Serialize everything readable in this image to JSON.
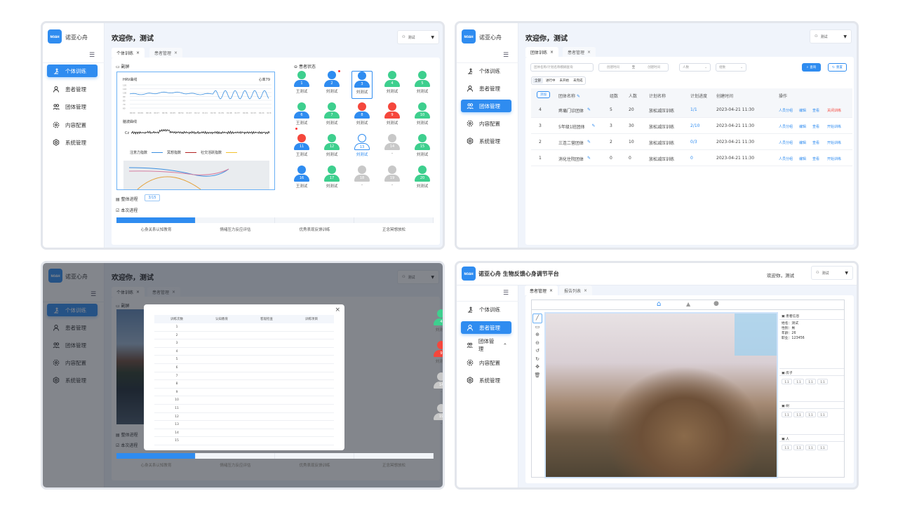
{
  "app": {
    "brand": "诺亚心舟",
    "logo_text": "NOAH",
    "welcome": "欢迎你，测试",
    "user": "测试",
    "platform_title": "诺亚心舟 生物反馈心身调节平台",
    "welcome_short": "欢迎你，测试"
  },
  "colors": {
    "primary": "#2f8cf0",
    "green": "#3ecf8e",
    "red": "#f5473c",
    "gray": "#c8c8c8"
  },
  "sidebar": {
    "items": [
      {
        "label": "个体训练",
        "icon": "training-icon"
      },
      {
        "label": "患者管理",
        "icon": "patient-icon"
      },
      {
        "label": "团体管理",
        "icon": "group-icon"
      },
      {
        "label": "内容配置",
        "icon": "content-config-icon"
      },
      {
        "label": "系统管理",
        "icon": "settings-icon"
      }
    ]
  },
  "individual": {
    "tabs": [
      "个体训练",
      "患者管理"
    ],
    "secondary_screen": "副屏",
    "hrv_title": "HRV曲线",
    "heart_rate": "心率79",
    "hrv_y_ticks": [
      "120",
      "110",
      "100",
      "90",
      "80",
      "70",
      "60"
    ],
    "hrv_x_ticks": [
      "00:00",
      "00:09",
      "00:18",
      "00:27",
      "00:36",
      "00:45",
      "00:54",
      "01:03",
      "01:12",
      "01:21",
      "01:30",
      "01:39",
      "01:48",
      "01:57",
      "02:06",
      "02:15",
      "02:24",
      "02:33"
    ],
    "eeg_title": "脑波曲线",
    "eeg_channel": "Cz",
    "legend": [
      "注意力指数",
      "冥想指数",
      "社交活跃指数"
    ],
    "legend_colors": [
      "#3a8fe0",
      "#b22222",
      "#f2c12e"
    ],
    "patient_status_title": "患者状态",
    "overall_progress_label": "整体进程",
    "overall_progress": "3/15",
    "session_progress_label": "本次进程",
    "session_steps": [
      "心身关系认知教育",
      "情绪压力反应评估",
      "优秀表现反馈训练",
      "正念冥想放松"
    ],
    "session_completed_steps": 1,
    "patients": [
      {
        "no": "1",
        "name": "王测试",
        "head": "green",
        "body": "blue"
      },
      {
        "no": "2",
        "name": "刘测试",
        "head": "blue",
        "body": "blue",
        "alert": true
      },
      {
        "no": "3",
        "name": "刘测试",
        "head": "blue",
        "body": "blue",
        "selected": true
      },
      {
        "no": "4",
        "name": "刘测试",
        "head": "green",
        "body": "green"
      },
      {
        "no": "5",
        "name": "刘测试",
        "head": "green",
        "body": "green"
      },
      {
        "no": "6",
        "name": "王测试",
        "head": "green",
        "body": "blue",
        "alert": true
      },
      {
        "no": "7",
        "name": "刘测试",
        "head": "green",
        "body": "green"
      },
      {
        "no": "8",
        "name": "刘测试",
        "head": "red",
        "body": "blue"
      },
      {
        "no": "9",
        "name": "刘测试",
        "head": "red",
        "body": "red"
      },
      {
        "no": "10",
        "name": "刘测试",
        "head": "green",
        "body": "green"
      },
      {
        "no": "11",
        "name": "王测试",
        "head": "red",
        "body": "blue"
      },
      {
        "no": "12",
        "name": "刘测试",
        "head": "green",
        "body": "green"
      },
      {
        "no": "13",
        "name": "刘测试",
        "head": "outline",
        "body": "outline"
      },
      {
        "no": "14",
        "name": "-",
        "head": "gray",
        "body": "gray"
      },
      {
        "no": "15",
        "name": "刘测试",
        "head": "green",
        "body": "green"
      },
      {
        "no": "16",
        "name": "王测试",
        "head": "blue",
        "body": "blue"
      },
      {
        "no": "17",
        "name": "刘测试",
        "head": "green",
        "body": "green"
      },
      {
        "no": "18",
        "name": "-",
        "head": "gray",
        "body": "gray"
      },
      {
        "no": "19",
        "name": "-",
        "head": "gray",
        "body": "gray"
      },
      {
        "no": "20",
        "name": "刘测试",
        "head": "green",
        "body": "green"
      }
    ]
  },
  "group": {
    "tabs": [
      "团体训练",
      "患者管理"
    ],
    "search_placeholder": "团体名称/计划名称模糊查询",
    "date_start": "创建时间",
    "date_sep": "至",
    "date_end": "创建时间",
    "people_select": "人数",
    "groups_select": "组数",
    "query_button": "查询",
    "reset_button": "重置",
    "filters": [
      "全部",
      "进行中",
      "未开始",
      "未完成"
    ],
    "add_button": "添加",
    "columns": [
      "团体名称",
      "组数",
      "人数",
      "计划名称",
      "计划进度",
      "创建时间",
      "操作"
    ],
    "rows": [
      {
        "id": "4",
        "name": "疼痛门诊团体",
        "groups": "5",
        "people": "20",
        "plan": "放松减压训练",
        "progress": "1/1",
        "created": "2023-04-21 11:30",
        "actions": [
          "人员分组",
          "编辑",
          "查看",
          "关闭训练"
        ]
      },
      {
        "id": "3",
        "name": "5年级1班团体",
        "groups": "3",
        "people": "30",
        "plan": "放松减压训练",
        "progress": "2/10",
        "created": "2023-04-21 11:30",
        "actions": [
          "人员分组",
          "编辑",
          "查看",
          "开始训练"
        ]
      },
      {
        "id": "2",
        "name": "三连二营团体",
        "groups": "2",
        "people": "10",
        "plan": "放松减压训练",
        "progress": "0/3",
        "created": "2023-04-21 11:30",
        "actions": [
          "人员分组",
          "编辑",
          "查看",
          "开始训练"
        ]
      },
      {
        "id": "1",
        "name": "消化住院团体",
        "groups": "0",
        "people": "0",
        "plan": "放松减压训练",
        "progress": "0",
        "created": "2023-04-21 11:30",
        "actions": [
          "人员分组",
          "编辑",
          "查看",
          "开始训练"
        ]
      }
    ]
  },
  "modal": {
    "columns": [
      "训练次数",
      "认知教育",
      "客观检查",
      "训练项目"
    ],
    "rows": [
      "1",
      "2",
      "3",
      "4",
      "5",
      "6",
      "7",
      "8",
      "9",
      "10",
      "11",
      "12",
      "13",
      "14",
      "15"
    ]
  },
  "report": {
    "tabs": [
      "患者管理",
      "报告列表"
    ],
    "patient_info_title": "患者信息",
    "patient_info": [
      "姓名：测试",
      "性别：男",
      "年龄：26",
      "职业：123456"
    ],
    "sections": [
      {
        "title": "房子",
        "values": [
          "1.1",
          "1.1",
          "1.1",
          "1.1"
        ]
      },
      {
        "title": "树",
        "values": [
          "1.1",
          "1.1",
          "1.1",
          "1.1"
        ]
      },
      {
        "title": "人",
        "values": [
          "1.1",
          "1.1",
          "1.1",
          "1.1"
        ]
      }
    ]
  }
}
